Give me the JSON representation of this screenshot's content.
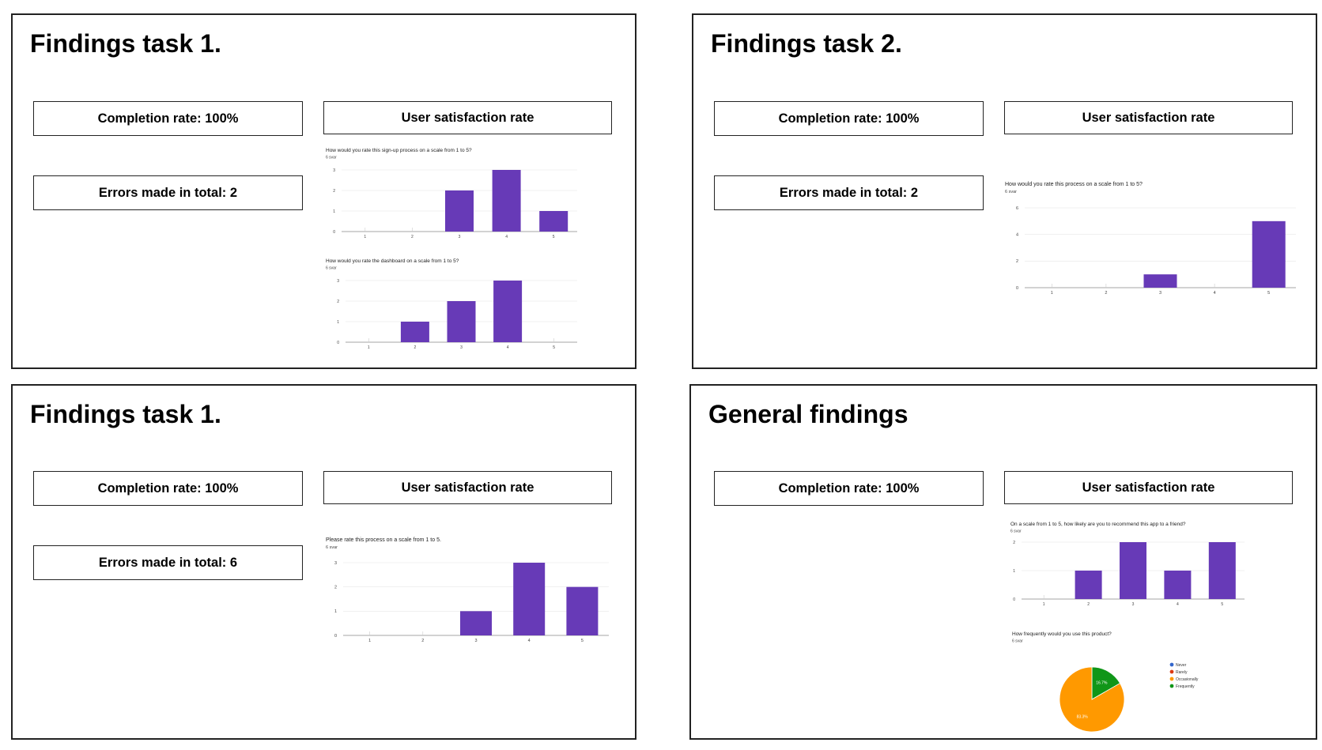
{
  "slides": [
    {
      "title": "Findings task 1.",
      "completion": "Completion rate: 100%",
      "satisfaction": "User satisfaction rate",
      "errors": "Errors made in total: 2"
    },
    {
      "title": "Findings task 2.",
      "completion": "Completion rate: 100%",
      "satisfaction": "User satisfaction rate",
      "errors": "Errors made in total: 2"
    },
    {
      "title": "Findings task 1.",
      "completion": "Completion rate: 100%",
      "satisfaction": "User satisfaction rate",
      "errors": "Errors made in total: 6"
    },
    {
      "title": "General findings",
      "completion": "Completion rate: 100%",
      "satisfaction": "User satisfaction rate"
    }
  ],
  "colors": {
    "bar": "#673ab7",
    "pie": [
      "#3366cc",
      "#dc3912",
      "#ff9900",
      "#109618"
    ]
  },
  "chart_data": [
    {
      "type": "bar",
      "title": "How would you rate this sign-up process on a scale from 1 to 5?",
      "subtitle": "6 svar",
      "categories": [
        "1",
        "2",
        "3",
        "4",
        "5"
      ],
      "values": [
        0,
        0,
        2,
        3,
        1
      ],
      "ylim": [
        0,
        3
      ],
      "yticks": [
        0,
        1,
        2,
        3
      ],
      "grid": true
    },
    {
      "type": "bar",
      "title": "How would you rate the dashboard on a scale from 1 to 5?",
      "subtitle": "6 svar",
      "categories": [
        "1",
        "2",
        "3",
        "4",
        "5"
      ],
      "values": [
        0,
        1,
        2,
        3,
        0
      ],
      "ylim": [
        0,
        3
      ],
      "yticks": [
        0,
        1,
        2,
        3
      ],
      "grid": true
    },
    {
      "type": "bar",
      "title": "How would you rate this process on a scale from 1 to 5?",
      "subtitle": "6 svar",
      "categories": [
        "1",
        "2",
        "3",
        "4",
        "5"
      ],
      "values": [
        0,
        0,
        1,
        0,
        5
      ],
      "ylim": [
        0,
        6
      ],
      "yticks": [
        0,
        2,
        4,
        6
      ],
      "grid": true
    },
    {
      "type": "bar",
      "title": "Please rate this process on a scale from 1 to 5.",
      "subtitle": "6 svar",
      "categories": [
        "1",
        "2",
        "3",
        "4",
        "5"
      ],
      "values": [
        0,
        0,
        1,
        3,
        2
      ],
      "ylim": [
        0,
        3
      ],
      "yticks": [
        0,
        1,
        2,
        3
      ],
      "grid": true
    },
    {
      "type": "bar",
      "title": "On a scale from 1 to 5, how likely are you to recommend this app to a friend?",
      "subtitle": "6 svar",
      "categories": [
        "1",
        "2",
        "3",
        "4",
        "5"
      ],
      "values": [
        0,
        1,
        2,
        1,
        2
      ],
      "ylim": [
        0,
        2
      ],
      "yticks": [
        0,
        1,
        2
      ],
      "grid": true
    },
    {
      "type": "pie",
      "title": "How frequently would you use this product?",
      "subtitle": "6 svar",
      "labels": [
        "Never",
        "Rarely",
        "Occasionally",
        "Frequently"
      ],
      "values": [
        0,
        0,
        83.3,
        16.7
      ],
      "data_labels": [
        "",
        "",
        "83.3%",
        "16.7%"
      ],
      "legend": "right"
    }
  ]
}
